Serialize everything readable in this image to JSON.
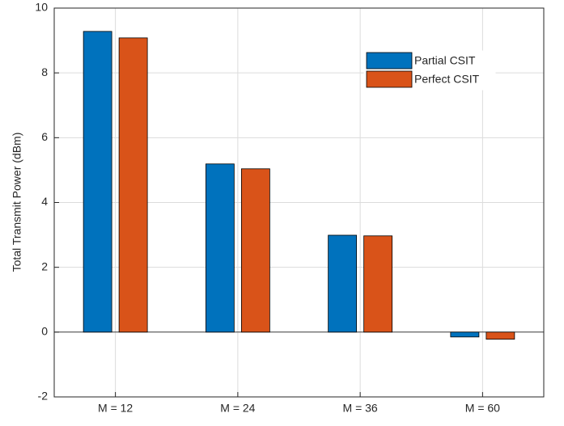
{
  "chart_data": {
    "type": "bar",
    "y_label": "Total Transmit Power (dBm)",
    "categories": [
      "M = 12",
      "M = 24",
      "M = 36",
      "M = 60"
    ],
    "series": [
      {
        "name": "Partial CSIT",
        "color": "#0072BD",
        "values": [
          9.28,
          5.19,
          2.99,
          -0.15
        ]
      },
      {
        "name": "Perfect CSIT",
        "color": "#D95319",
        "values": [
          9.08,
          5.04,
          2.97,
          -0.22
        ]
      }
    ],
    "ylim": [
      -2,
      10
    ],
    "yticks": [
      -2,
      0,
      2,
      4,
      6,
      8,
      10
    ],
    "grid": true,
    "legend": "upper right"
  }
}
